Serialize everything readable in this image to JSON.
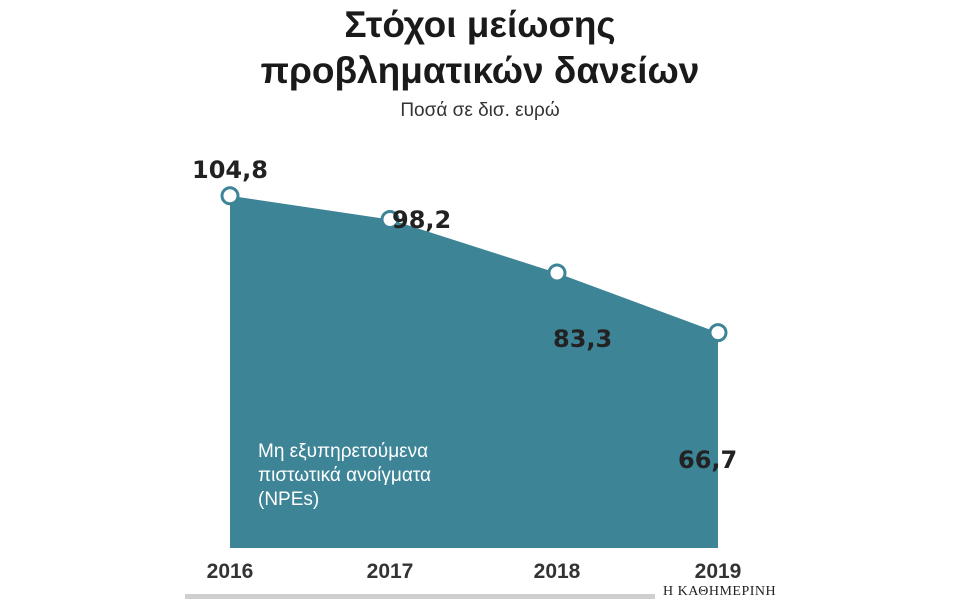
{
  "chart_data": {
    "type": "area",
    "title_lines": [
      "Στόχοι μείωσης",
      "προβληματικών δανείων"
    ],
    "subtitle": "Ποσά σε δισ. ευρώ",
    "categories": [
      "2016",
      "2017",
      "2018",
      "2019"
    ],
    "values": [
      104.8,
      98.2,
      83.3,
      66.7
    ],
    "value_labels": [
      "104,8",
      "98,2",
      "83,3",
      "66,7"
    ],
    "series": [
      {
        "name_lines": [
          "Μη εξυπηρετούμενα",
          "πιστωτικά ανοίγματα",
          "(NPEs)"
        ],
        "color": "#3c8496"
      }
    ],
    "xlabel": "",
    "ylabel": "",
    "grid": false
  },
  "source": "Η ΚΑΘΗΜΕΡΙΝΗ",
  "colors": {
    "area": "#3c8496",
    "marker_fill": "#ffffff",
    "rule": "#cfcfcf"
  }
}
